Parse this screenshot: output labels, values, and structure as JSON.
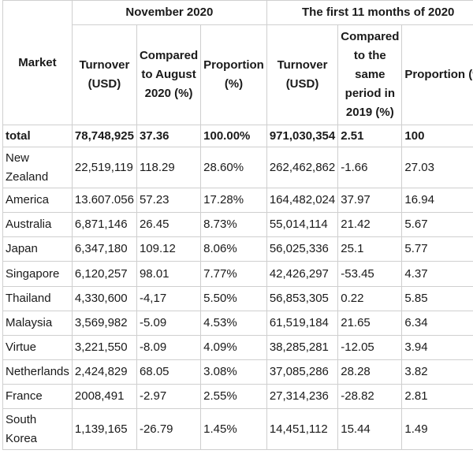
{
  "header": {
    "market": "Market",
    "group1": "November 2020",
    "group2": "The first 11 months of 2020",
    "turnover1": "Turnover (USD)",
    "compared1": "Compared to August 2020 (%)",
    "proportion1": "Proportion (%)",
    "turnover2": "Turnover (USD)",
    "compared2": "Compared to the same period in 2019 (%)",
    "proportion2": "Proportion (%)"
  },
  "rows": [
    {
      "market": "total",
      "t1": "78,748,925",
      "c1": "37.36",
      "p1": "100.00%",
      "t2": "971,030,354",
      "c2": "2.51",
      "p2": "100"
    },
    {
      "market": "New Zealand",
      "t1": "22,519,119",
      "c1": "118.29",
      "p1": "28.60%",
      "t2": "262,462,862",
      "c2": "-1.66",
      "p2": "27.03"
    },
    {
      "market": "America",
      "t1": "13.607.056",
      "c1": "57.23",
      "p1": "17.28%",
      "t2": "164,482,024",
      "c2": "37.97",
      "p2": "16.94"
    },
    {
      "market": "Australia",
      "t1": "6,871,146",
      "c1": "26.45",
      "p1": "8.73%",
      "t2": "55,014,114",
      "c2": "21.42",
      "p2": "5.67"
    },
    {
      "market": "Japan",
      "t1": "6,347,180",
      "c1": "109.12",
      "p1": "8.06%",
      "t2": "56,025,336",
      "c2": "25.1",
      "p2": "5.77"
    },
    {
      "market": "Singapore",
      "t1": "6,120,257",
      "c1": "98.01",
      "p1": "7.77%",
      "t2": "42,426,297",
      "c2": "-53.45",
      "p2": "4.37"
    },
    {
      "market": "Thailand",
      "t1": "4,330,600",
      "c1": "-4,17",
      "p1": "5.50%",
      "t2": "56,853,305",
      "c2": "0.22",
      "p2": "5.85"
    },
    {
      "market": "Malaysia",
      "t1": "3,569,982",
      "c1": "-5.09",
      "p1": "4.53%",
      "t2": "61,519,184",
      "c2": "21.65",
      "p2": "6.34"
    },
    {
      "market": "Virtue",
      "t1": "3,221,550",
      "c1": "-8.09",
      "p1": "4.09%",
      "t2": "38,285,281",
      "c2": "-12.05",
      "p2": "3.94"
    },
    {
      "market": "Netherlands",
      "t1": "2,424,829",
      "c1": "68.05",
      "p1": "3.08%",
      "t2": "37,085,286",
      "c2": "28.28",
      "p2": "3.82"
    },
    {
      "market": "France",
      "t1": "2008,491",
      "c1": "-2.97",
      "p1": "2.55%",
      "t2": "27,314,236",
      "c2": "-28.82",
      "p2": "2.81"
    },
    {
      "market": "South Korea",
      "t1": "1,139,165",
      "c1": "-26.79",
      "p1": "1.45%",
      "t2": "14,451,112",
      "c2": "15.44",
      "p2": "1.49"
    }
  ]
}
